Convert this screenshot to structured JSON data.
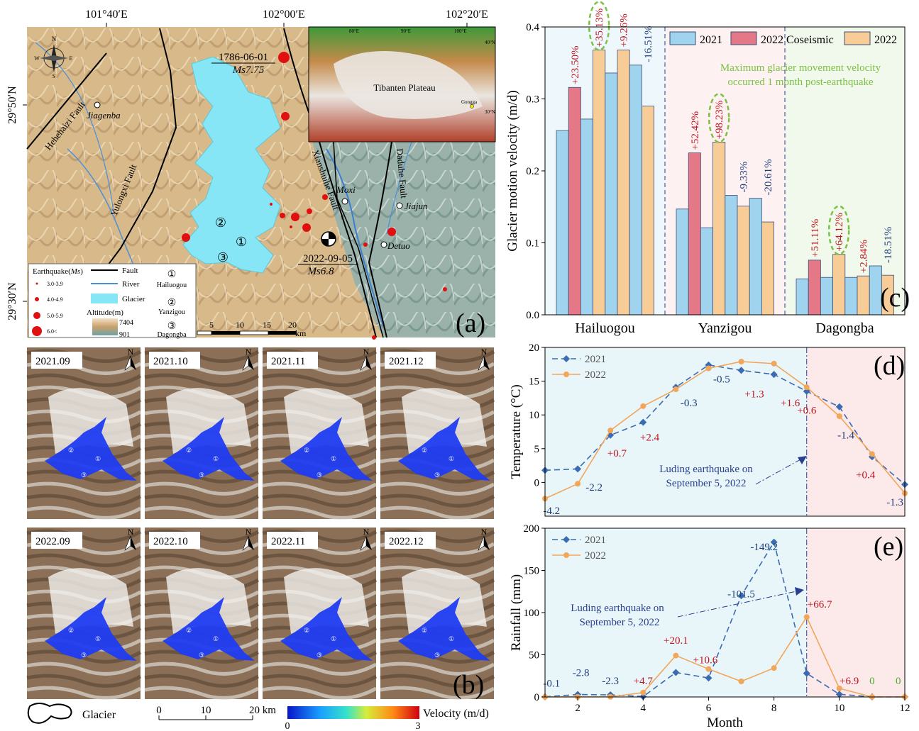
{
  "panel_a": {
    "top_coords": [
      "101°40′E",
      "102°00′E",
      "102°20′E"
    ],
    "left_coords": [
      "29°50′N",
      "29°30′N"
    ],
    "panel_label": "(a)",
    "event_1786_date": "1786-06-01",
    "event_1786_mag": "Ms7.75",
    "event_2022_date": "2022-09-05",
    "event_2022_mag": "Ms6.8",
    "place_names": [
      "Jiagenba",
      "Moxi",
      "Jiajun",
      "Detuo"
    ],
    "fault_names": [
      "Hehehaizi Fault",
      "Yulongxi Fault",
      "Xianshuihe Fault",
      "Daduhe Fault"
    ],
    "glacier_numbers": [
      "①",
      "②",
      "③"
    ],
    "inset": {
      "title": "Tibanten Plateau",
      "place": "Gongga",
      "coords": [
        "80°E",
        "90°E",
        "100°E",
        "40°N",
        "30°N"
      ]
    },
    "scale_numbers": [
      "5",
      "10",
      "15",
      "20"
    ],
    "scale_unit": "km",
    "compass_labels": [
      "N",
      "W",
      "E",
      "S"
    ],
    "legend": {
      "earthquake_title_pre": "Earthquake(",
      "earthquake_title_ms": "Ms",
      "earthquake_title_post": ")",
      "earthquake_classes": [
        "3.0-3.9",
        "4.0-4.9",
        "5.0-5.9",
        "6.0<"
      ],
      "fault": "Fault",
      "river": "River",
      "glacier": "Glacier",
      "altitude_title": "Altitude(m)",
      "altitude_max": "7404",
      "altitude_min": "901",
      "glacier_names": [
        {
          "num": "①",
          "name": "Hailuogou"
        },
        {
          "num": "②",
          "name": "Yanzigou"
        },
        {
          "num": "③",
          "name": "Dagongba"
        }
      ]
    },
    "colors": {
      "glacier": "#87e6f5",
      "earthquake": "#e01010",
      "fault": "#000000",
      "river": "#4a90d9"
    }
  },
  "panel_b": {
    "panel_label": "(b)",
    "north": "N",
    "tiles_2021": [
      "2021.09",
      "2021.10",
      "2021.11",
      "2021.12"
    ],
    "tiles_2022": [
      "2022.09",
      "2022.10",
      "2022.11",
      "2022.12"
    ],
    "tile_markers": [
      "②",
      "①",
      "③"
    ],
    "legend": {
      "glacier": "Glacier",
      "scale": [
        "0",
        "10",
        "20 km"
      ],
      "velocity_label": "Velocity (m/d)",
      "velocity_min": "0",
      "velocity_max": "3"
    }
  },
  "chart_data": [
    {
      "type": "bar",
      "panel": "(c)",
      "categories": [
        "Hailuogou",
        "Yanzigou",
        "Dagongba"
      ],
      "ylabel": "Glacier motion velocity (m/d)",
      "ylim": [
        0,
        0.4
      ],
      "yticks": [
        "0.0",
        "0.1",
        "0.2",
        "0.3",
        "0.4"
      ],
      "legend": [
        "2021",
        "2022 Coseismic",
        "2022"
      ],
      "annotation": [
        "Maximum glacier movement velocity",
        "occurred 1 month post-earthquake"
      ],
      "colors": {
        "2021": "#9fd3ee",
        "2022 Coseismic": "#e57887",
        "2022": "#f8cc96",
        "up_label": "#c0141e",
        "down_label": "#1f3d7a",
        "highlight": "#7cc242"
      },
      "groups": [
        {
          "name": "Hailuogou",
          "bars": [
            {
              "series": "2021",
              "value": 0.256
            },
            {
              "series": "2022 Coseismic",
              "value": 0.316
            },
            {
              "series": "2021",
              "value": 0.272
            },
            {
              "series": "2022",
              "value": 0.368
            },
            {
              "series": "2021",
              "value": 0.336
            },
            {
              "series": "2022",
              "value": 0.368
            },
            {
              "series": "2021",
              "value": 0.347
            },
            {
              "series": "2022",
              "value": 0.29
            }
          ],
          "labels": [
            {
              "text": "+23.50%",
              "dir": "up"
            },
            {
              "text": "+35.13%",
              "dir": "up",
              "highlight": true
            },
            {
              "text": "+9.26%",
              "dir": "up"
            },
            {
              "text": "-16.51%",
              "dir": "down"
            }
          ]
        },
        {
          "name": "Yanzigou",
          "bars": [
            {
              "series": "2021",
              "value": 0.147
            },
            {
              "series": "2022 Coseismic",
              "value": 0.225
            },
            {
              "series": "2021",
              "value": 0.121
            },
            {
              "series": "2022",
              "value": 0.24
            },
            {
              "series": "2021",
              "value": 0.166
            },
            {
              "series": "2022",
              "value": 0.151
            },
            {
              "series": "2021",
              "value": 0.162
            },
            {
              "series": "2022",
              "value": 0.129
            }
          ],
          "labels": [
            {
              "text": "+52.42%",
              "dir": "up"
            },
            {
              "text": "+98.23%",
              "dir": "up",
              "highlight": true
            },
            {
              "text": "-9.33%",
              "dir": "down"
            },
            {
              "text": "-20.61%",
              "dir": "down"
            }
          ]
        },
        {
          "name": "Dagongba",
          "bars": [
            {
              "series": "2021",
              "value": 0.05
            },
            {
              "series": "2022 Coseismic",
              "value": 0.076
            },
            {
              "series": "2021",
              "value": 0.052
            },
            {
              "series": "2022",
              "value": 0.084
            },
            {
              "series": "2021",
              "value": 0.052
            },
            {
              "series": "2022",
              "value": 0.054
            },
            {
              "series": "2021",
              "value": 0.068
            },
            {
              "series": "2022",
              "value": 0.055
            }
          ],
          "labels": [
            {
              "text": "+51.11%",
              "dir": "up"
            },
            {
              "text": "+64.12%",
              "dir": "up",
              "highlight": true
            },
            {
              "text": "+2.84%",
              "dir": "up"
            },
            {
              "text": "-18.51%",
              "dir": "down"
            }
          ]
        }
      ]
    },
    {
      "type": "line",
      "panel": "(d)",
      "ylabel": "Temperature (°C)",
      "ylim": [
        -5,
        20
      ],
      "yticks": [
        0,
        5,
        10,
        15,
        20
      ],
      "xlim": [
        1,
        12
      ],
      "x": [
        1,
        2,
        3,
        4,
        5,
        6,
        7,
        8,
        9,
        10,
        11,
        12
      ],
      "series": [
        {
          "name": "2021",
          "style": "dashed-diamond",
          "color": "#3b6bb0",
          "values": [
            1.8,
            2.0,
            7.0,
            8.9,
            14.1,
            17.4,
            16.6,
            16.0,
            13.5,
            11.2,
            3.8,
            -0.3
          ]
        },
        {
          "name": "2022",
          "style": "solid-circle",
          "color": "#f2a65a",
          "values": [
            -2.4,
            -0.2,
            7.7,
            11.3,
            13.8,
            16.9,
            17.9,
            17.6,
            14.1,
            9.8,
            4.2,
            -1.6
          ]
        }
      ],
      "diff_labels": [
        {
          "text": "-4.2",
          "x": 1.2,
          "y": -4.7,
          "dir": "down"
        },
        {
          "text": "-2.2",
          "x": 2.5,
          "y": -1.2,
          "dir": "down"
        },
        {
          "text": "+0.7",
          "x": 3.2,
          "y": 3.8,
          "dir": "up"
        },
        {
          "text": "+2.4",
          "x": 4.2,
          "y": 6.2,
          "dir": "up"
        },
        {
          "text": "-0.3",
          "x": 5.4,
          "y": 11.3,
          "dir": "down"
        },
        {
          "text": "-0.5",
          "x": 6.4,
          "y": 14.8,
          "dir": "down"
        },
        {
          "text": "+1.3",
          "x": 7.4,
          "y": 12.6,
          "dir": "up"
        },
        {
          "text": "+1.6",
          "x": 8.5,
          "y": 11.3,
          "dir": "up"
        },
        {
          "text": "+0.6",
          "x": 9.0,
          "y": 10.2,
          "dir": "up"
        },
        {
          "text": "-1.4",
          "x": 10.2,
          "y": 6.5,
          "dir": "down"
        },
        {
          "text": "+0.4",
          "x": 10.8,
          "y": 0.6,
          "dir": "up"
        },
        {
          "text": "-1.3",
          "x": 11.7,
          "y": -3.4,
          "dir": "down"
        }
      ],
      "event_x": 9,
      "event_label": [
        "Luding earthquake on",
        "September 5, 2022"
      ],
      "colors": {
        "pre": "#e8f6fa",
        "post": "#fce9ea"
      }
    },
    {
      "type": "line",
      "panel": "(e)",
      "ylabel": "Rainfall (mm)",
      "xlabel": "Month",
      "ylim": [
        0,
        200
      ],
      "yticks": [
        0,
        50,
        100,
        150,
        200
      ],
      "xlim": [
        1,
        12
      ],
      "xticks": [
        2,
        4,
        6,
        8,
        10,
        12
      ],
      "x": [
        1,
        2,
        3,
        4,
        5,
        6,
        7,
        8,
        9,
        10,
        11,
        12
      ],
      "series": [
        {
          "name": "2021",
          "style": "dashed-diamond",
          "color": "#3b6bb0",
          "values": [
            0.2,
            2.9,
            2.5,
            0.5,
            29.0,
            22.5,
            120.0,
            183.5,
            28.0,
            3.2,
            0.1,
            0.1
          ]
        },
        {
          "name": "2022",
          "style": "solid-circle",
          "color": "#f2a65a",
          "values": [
            0.1,
            0.1,
            0.2,
            5.2,
            49.1,
            33.1,
            18.5,
            34.3,
            94.7,
            10.1,
            0.1,
            0.1
          ]
        }
      ],
      "diff_labels": [
        {
          "text": "-0.1",
          "x": 1.2,
          "y": 12,
          "dir": "down"
        },
        {
          "text": "-2.8",
          "x": 2.1,
          "y": 25,
          "dir": "down"
        },
        {
          "text": "-2.3",
          "x": 3.0,
          "y": 15,
          "dir": "down"
        },
        {
          "text": "+4.7",
          "x": 4.0,
          "y": 15,
          "dir": "up"
        },
        {
          "text": "+20.1",
          "x": 5.0,
          "y": 63,
          "dir": "up"
        },
        {
          "text": "+10.6",
          "x": 5.9,
          "y": 40,
          "dir": "up"
        },
        {
          "text": "-101.5",
          "x": 7.0,
          "y": 118,
          "dir": "down"
        },
        {
          "text": "-149.2",
          "x": 7.7,
          "y": 174,
          "dir": "down"
        },
        {
          "text": "+66.7",
          "x": 9.4,
          "y": 106,
          "dir": "up"
        },
        {
          "text": "+6.9",
          "x": 10.3,
          "y": 15,
          "dir": "up"
        },
        {
          "text": "0",
          "x": 11.0,
          "y": 15,
          "dir": "zero"
        },
        {
          "text": "0",
          "x": 11.8,
          "y": 15,
          "dir": "zero"
        }
      ],
      "event_x": 9,
      "event_label": [
        "Luding earthquake on",
        "September 5, 2022"
      ],
      "colors": {
        "pre": "#e8f6fa",
        "post": "#fce9ea"
      }
    }
  ]
}
